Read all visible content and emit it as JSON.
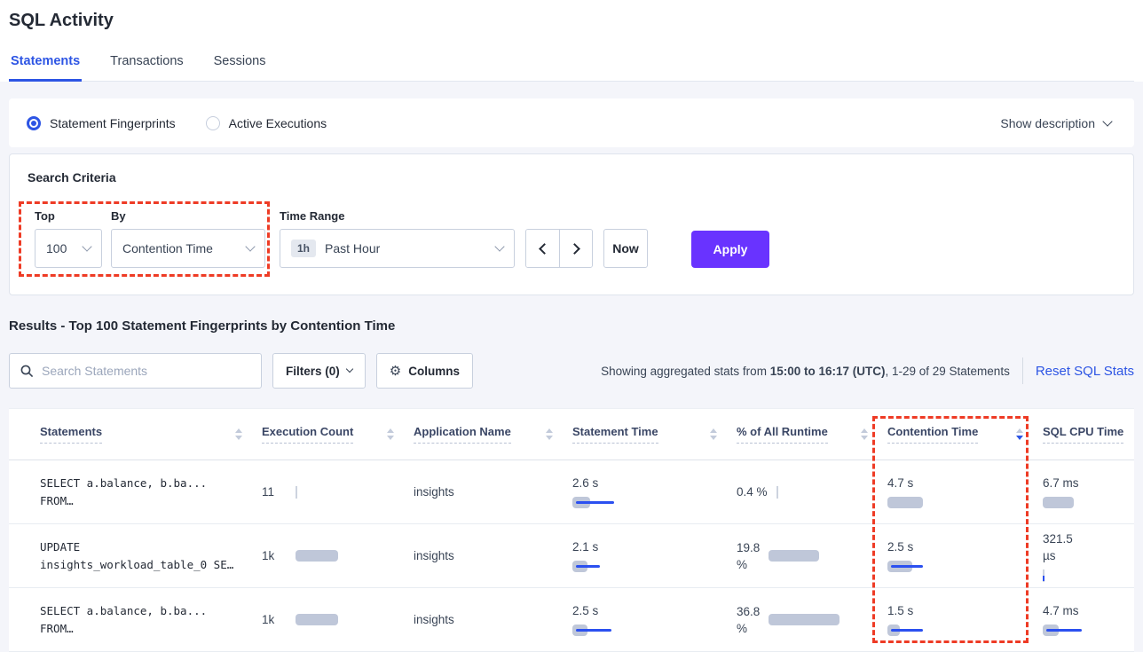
{
  "page": {
    "title": "SQL Activity"
  },
  "tabs": [
    {
      "label": "Statements",
      "active": true
    },
    {
      "label": "Transactions",
      "active": false
    },
    {
      "label": "Sessions",
      "active": false
    }
  ],
  "view_toggle": {
    "options": [
      {
        "label": "Statement Fingerprints",
        "selected": true
      },
      {
        "label": "Active Executions",
        "selected": false
      }
    ],
    "show_description": "Show description"
  },
  "search_criteria": {
    "heading": "Search Criteria",
    "top": {
      "label": "Top",
      "value": "100"
    },
    "by": {
      "label": "By",
      "value": "Contention Time"
    },
    "time_range": {
      "label": "Time Range",
      "badge": "1h",
      "value": "Past Hour"
    },
    "now_label": "Now",
    "apply_label": "Apply"
  },
  "results": {
    "heading": "Results - Top 100 Statement Fingerprints by Contention Time",
    "search_placeholder": "Search Statements",
    "filters_label": "Filters (0)",
    "columns_label": "Columns",
    "stats_prefix": "Showing aggregated stats from ",
    "stats_bold": "15:00 to 16:17 (UTC)",
    "stats_suffix": ", 1-29 of 29 Statements",
    "reset_label": "Reset SQL Stats"
  },
  "table": {
    "headers": [
      {
        "label": "Statements",
        "sort": "none"
      },
      {
        "label": "Execution Count",
        "sort": "none"
      },
      {
        "label": "Application Name",
        "sort": "none"
      },
      {
        "label": "Statement Time",
        "sort": "none"
      },
      {
        "label": "% of All Runtime",
        "sort": "none"
      },
      {
        "label": "Contention Time",
        "sort": "desc"
      },
      {
        "label": "SQL CPU Time",
        "sort": "hidden"
      }
    ],
    "rows": [
      {
        "statement_lines": [
          "SELECT a.balance, b.ba...",
          "FROM…"
        ],
        "execution_count": {
          "value": "11",
          "bar": {
            "gray": 2,
            "blue": 0
          }
        },
        "application": "insights",
        "statement_time": {
          "lines": [
            "2.6 s"
          ],
          "bar": {
            "gray": 20,
            "blue": 43
          }
        },
        "runtime": {
          "lines": [
            "0.4 %"
          ],
          "bar": {
            "gray": 2,
            "blue": 0
          }
        },
        "contention": {
          "lines": [
            "4.7 s"
          ],
          "bar": {
            "gray": 40,
            "blue": 0
          }
        },
        "cpu": {
          "lines": [
            "6.7 ms"
          ],
          "bar": {
            "gray": 35,
            "blue": 0
          }
        }
      },
      {
        "statement_lines": [
          "UPDATE",
          "insights_workload_table_0 SE…"
        ],
        "execution_count": {
          "value": "1k",
          "bar": {
            "gray": 48,
            "blue": 0
          }
        },
        "application": "insights",
        "statement_time": {
          "lines": [
            "2.1 s"
          ],
          "bar": {
            "gray": 17,
            "blue": 27
          }
        },
        "runtime": {
          "lines": [
            "19.8",
            "%"
          ],
          "bar": {
            "gray": 57,
            "blue": 0
          }
        },
        "contention": {
          "lines": [
            "2.5 s"
          ],
          "bar": {
            "gray": 28,
            "blue": 36
          }
        },
        "cpu": {
          "lines": [
            "321.5",
            "µs"
          ],
          "bar": {
            "gray": 2,
            "blue": 2
          }
        }
      },
      {
        "statement_lines": [
          "SELECT a.balance, b.ba...",
          "FROM…"
        ],
        "execution_count": {
          "value": "1k",
          "bar": {
            "gray": 48,
            "blue": 0
          }
        },
        "application": "insights",
        "statement_time": {
          "lines": [
            "2.5 s"
          ],
          "bar": {
            "gray": 17,
            "blue": 40
          }
        },
        "runtime": {
          "lines": [
            "36.8",
            "%"
          ],
          "bar": {
            "gray": 80,
            "blue": 0
          }
        },
        "contention": {
          "lines": [
            "1.5 s"
          ],
          "bar": {
            "gray": 14,
            "blue": 36
          }
        },
        "cpu": {
          "lines": [
            "4.7 ms"
          ],
          "bar": {
            "gray": 18,
            "blue": 40
          }
        }
      }
    ]
  },
  "colors": {
    "accent_blue": "#2d55e4",
    "apply_purple": "#6933ff",
    "annotation_red": "#ee3b25",
    "bar_gray": "#bfc7d9",
    "bar_blue": "#2b50f0"
  }
}
